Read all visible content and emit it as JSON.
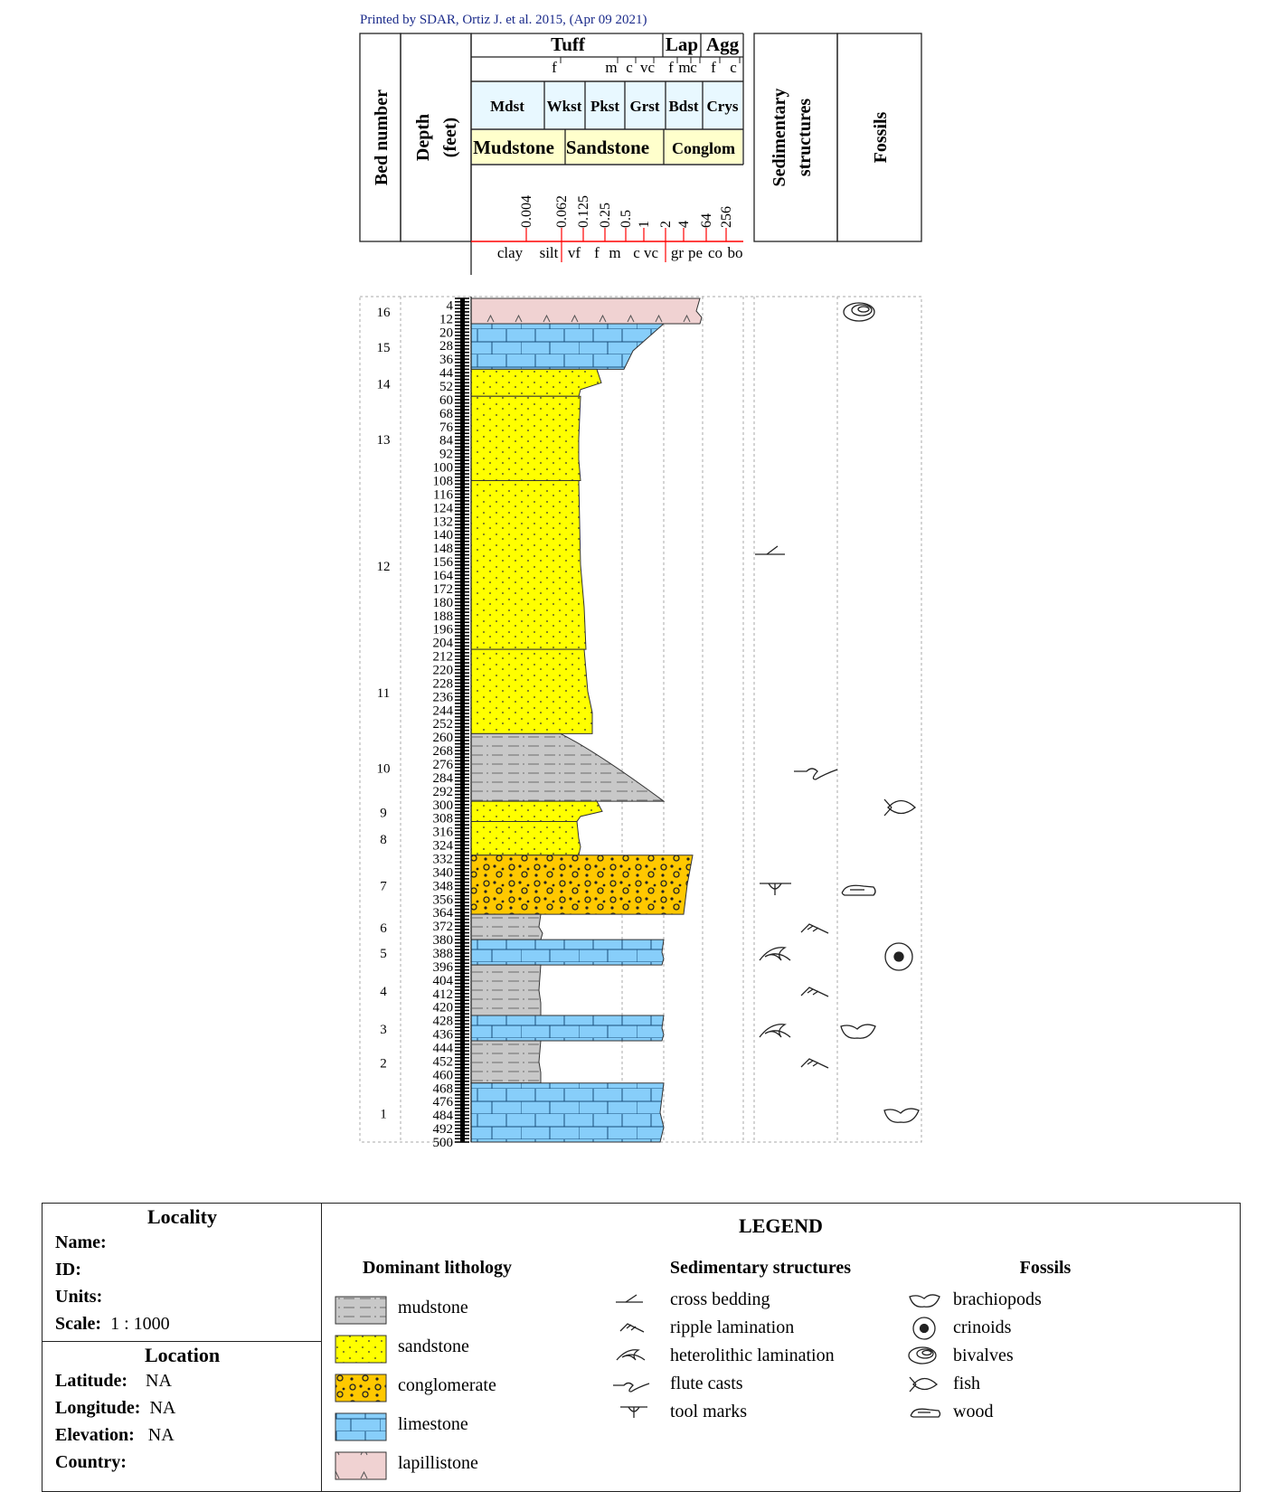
{
  "printed_by": "Printed by SDAR, Ortiz J. et al. 2015, (Apr 09 2021)",
  "header": {
    "bed_number": "Bed number",
    "depth": "Depth",
    "depth_units": "(feet)",
    "tuff": "Tuff",
    "lap": "Lap",
    "agg": "Agg",
    "tuff_sub": [
      "f",
      "m",
      "c",
      "vc",
      "f",
      "m",
      "c",
      "f",
      "c"
    ],
    "carbonate_classes": [
      "Mdst",
      "Wkst",
      "Pkst",
      "Grst",
      "Bdst",
      "Crys"
    ],
    "clastic_classes": [
      "Mudstone",
      "Sandstone",
      "Conglom"
    ],
    "grain_sizes": [
      "0.004",
      "0.062",
      "0.125",
      "0.25",
      "0.5",
      "1",
      "2",
      "4",
      "64",
      "256"
    ],
    "grain_names": [
      "clay",
      "silt",
      "vf",
      "f",
      "m",
      "c",
      "vc",
      "gr",
      "pe",
      "co",
      "bo"
    ],
    "sedimentary_structures": "Sedimentary structures",
    "fossils": "Fossils"
  },
  "depth_ticks": [
    "4",
    "12",
    "20",
    "28",
    "36",
    "44",
    "52",
    "60",
    "68",
    "76",
    "84",
    "92",
    "100",
    "108",
    "116",
    "124",
    "132",
    "140",
    "148",
    "156",
    "164",
    "172",
    "180",
    "188",
    "196",
    "204",
    "212",
    "220",
    "228",
    "236",
    "244",
    "252",
    "260",
    "268",
    "276",
    "284",
    "292",
    "300",
    "308",
    "316",
    "324",
    "332",
    "340",
    "348",
    "356",
    "364",
    "372",
    "380",
    "388",
    "396",
    "404",
    "412",
    "420",
    "428",
    "436",
    "444",
    "452",
    "460",
    "468",
    "476",
    "484",
    "492",
    "500"
  ],
  "beds": [
    {
      "bed": "16",
      "top": 0,
      "base": 15,
      "lith": "lapillistone"
    },
    {
      "bed": "15",
      "top": 15,
      "base": 42,
      "lith": "limestone"
    },
    {
      "bed": "14",
      "top": 42,
      "base": 58,
      "lith": "sandstone"
    },
    {
      "bed": "13",
      "top": 58,
      "base": 108,
      "lith": "sandstone"
    },
    {
      "bed": "12",
      "top": 108,
      "base": 208,
      "lith": "sandstone"
    },
    {
      "bed": "11",
      "top": 208,
      "base": 258,
      "lith": "sandstone"
    },
    {
      "bed": "10",
      "top": 258,
      "base": 298,
      "lith": "mudstone"
    },
    {
      "bed": "9",
      "top": 298,
      "base": 310,
      "lith": "sandstone"
    },
    {
      "bed": "8",
      "top": 310,
      "base": 330,
      "lith": "sandstone"
    },
    {
      "bed": "7",
      "top": 330,
      "base": 365,
      "lith": "conglomerate"
    },
    {
      "bed": "6",
      "top": 365,
      "base": 380,
      "lith": "mudstone"
    },
    {
      "bed": "5",
      "top": 380,
      "base": 395,
      "lith": "limestone"
    },
    {
      "bed": "4",
      "top": 395,
      "base": 425,
      "lith": "mudstone"
    },
    {
      "bed": "3",
      "top": 425,
      "base": 440,
      "lith": "limestone"
    },
    {
      "bed": "2",
      "top": 440,
      "base": 465,
      "lith": "mudstone"
    },
    {
      "bed": "1",
      "top": 465,
      "base": 500,
      "lith": "limestone"
    }
  ],
  "locality": {
    "title": "Locality",
    "name_label": "Name:",
    "id_label": "ID:",
    "units_label": "Units:",
    "scale_label": "Scale:",
    "scale_value": "1 : 1000"
  },
  "location": {
    "title": "Location",
    "latitude_label": "Latitude:",
    "latitude_value": "NA",
    "longitude_label": "Longitude:",
    "longitude_value": "NA",
    "elevation_label": "Elevation:",
    "elevation_value": "NA",
    "country_label": "Country:"
  },
  "legend": {
    "title": "LEGEND",
    "lithology_title": "Dominant lithology",
    "lithology": [
      "mudstone",
      "sandstone",
      "conglomerate",
      "limestone",
      "lapillistone"
    ],
    "structures_title": "Sedimentary structures",
    "structures": [
      "cross bedding",
      "ripple lamination",
      "heterolithic lamination",
      "flute casts",
      "tool marks"
    ],
    "fossils_title": "Fossils",
    "fossils": [
      "brachiopods",
      "crinoids",
      "bivalves",
      "fish",
      "wood"
    ]
  },
  "colors": {
    "mudstone": "#c8c8c8",
    "sandstone": "#ffff00",
    "conglomerate": "#ffc800",
    "limestone": "#87cefa",
    "lapillistone": "#f0d2d2",
    "carbonate_band": "#e8f8ff",
    "clastic_band": "#ffffcc",
    "grain_axis": "#ff0000"
  }
}
